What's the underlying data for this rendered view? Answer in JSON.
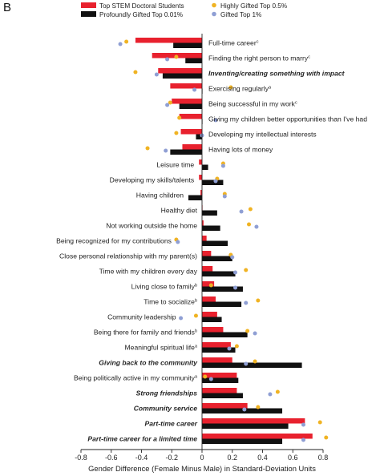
{
  "panel_label": "B",
  "chart_data": {
    "type": "bar",
    "orientation": "horizontal",
    "xlabel": "Gender Difference (Female Minus Male) in Standard-Deviation Units",
    "xlim": [
      -0.8,
      0.8
    ],
    "xticks": [
      -0.8,
      -0.6,
      -0.4,
      -0.2,
      0,
      0.2,
      0.4,
      0.6,
      0.8
    ],
    "tick_labels": [
      "-0.8",
      "-0.6",
      "-0.4",
      "-0.2",
      "0",
      "0.2",
      "0.4",
      "0.6",
      "0.8"
    ],
    "legend_position": "top",
    "colors": {
      "stem": "#e8212e",
      "profound": "#111111",
      "highly": "#f0b323",
      "gifted1": "#8f9fd4"
    },
    "legend": [
      {
        "key": "stem",
        "label": "Top STEM Doctoral Students",
        "mark": "bar"
      },
      {
        "key": "profound",
        "label": "Profoundly Gifted Top 0.01%",
        "mark": "bar"
      },
      {
        "key": "highly",
        "label": "Highly Gifted Top 0.5%",
        "mark": "dot"
      },
      {
        "key": "gifted1",
        "label": "Gifted Top 1%",
        "mark": "dot"
      }
    ],
    "categories": [
      {
        "label": "Full-time career",
        "sup": "c",
        "emph": false,
        "side": "right"
      },
      {
        "label": "Finding the right person to marry",
        "sup": "c",
        "emph": false,
        "side": "right"
      },
      {
        "label": "Inventing/creating something with impact",
        "sup": "",
        "emph": true,
        "side": "right"
      },
      {
        "label": "Exercising regularly",
        "sup": "a",
        "emph": false,
        "side": "right"
      },
      {
        "label": "Being successful in my work",
        "sup": "c",
        "emph": false,
        "side": "right"
      },
      {
        "label": "Giving my children better opportunities than I've had",
        "sup": "",
        "emph": false,
        "side": "right"
      },
      {
        "label": "Developing my intellectual interests",
        "sup": "",
        "emph": false,
        "side": "right"
      },
      {
        "label": "Having lots of money",
        "sup": "",
        "emph": false,
        "side": "right"
      },
      {
        "label": "Leisure time",
        "sup": "",
        "emph": false,
        "side": "left"
      },
      {
        "label": "Developing my skills/talents",
        "sup": "",
        "emph": false,
        "side": "left"
      },
      {
        "label": "Having children",
        "sup": "",
        "emph": false,
        "side": "left"
      },
      {
        "label": "Healthy diet",
        "sup": "",
        "emph": false,
        "side": "left"
      },
      {
        "label": "Not working outside the home",
        "sup": "",
        "emph": false,
        "side": "left"
      },
      {
        "label": "Being recognized for my contributions",
        "sup": "",
        "emph": false,
        "side": "left"
      },
      {
        "label": "Close personal relationship with my parent(s)",
        "sup": "",
        "emph": false,
        "side": "left"
      },
      {
        "label": "Time with my children every day",
        "sup": "",
        "emph": false,
        "side": "left"
      },
      {
        "label": "Living close to family",
        "sup": "b",
        "emph": false,
        "side": "left"
      },
      {
        "label": "Time to socialize",
        "sup": "b",
        "emph": false,
        "side": "left"
      },
      {
        "label": "Community leadership",
        "sup": "",
        "emph": false,
        "side": "left"
      },
      {
        "label": "Being there for family and friends",
        "sup": "b",
        "emph": false,
        "side": "left"
      },
      {
        "label": "Meaningful spiritual life",
        "sup": "a",
        "emph": false,
        "side": "left"
      },
      {
        "label": "Giving back to the community",
        "sup": "",
        "emph": true,
        "side": "left"
      },
      {
        "label": "Being politically active in my community",
        "sup": "a",
        "emph": false,
        "side": "left"
      },
      {
        "label": "Strong friendships",
        "sup": "",
        "emph": true,
        "side": "left"
      },
      {
        "label": "Community service",
        "sup": "",
        "emph": true,
        "side": "left"
      },
      {
        "label": "Part-time career",
        "sup": "",
        "emph": true,
        "side": "left"
      },
      {
        "label": "Part-time career for a limited time",
        "sup": "",
        "emph": true,
        "side": "left"
      }
    ],
    "series": [
      {
        "key": "stem",
        "name": "Top STEM Doctoral Students",
        "kind": "bar",
        "values": [
          -0.44,
          -0.33,
          -0.29,
          -0.21,
          -0.2,
          -0.15,
          -0.14,
          -0.13,
          -0.02,
          -0.02,
          -0.01,
          0.0,
          0.01,
          0.03,
          0.06,
          0.07,
          0.08,
          0.09,
          0.1,
          0.14,
          0.19,
          0.2,
          0.23,
          0.23,
          0.3,
          0.68,
          0.73
        ]
      },
      {
        "key": "profound",
        "name": "Profoundly Gifted Top 0.01%",
        "kind": "bar",
        "values": [
          -0.19,
          -0.11,
          -0.26,
          0.0,
          -0.15,
          0.0,
          -0.04,
          -0.21,
          0.04,
          0.14,
          -0.09,
          0.1,
          0.12,
          0.17,
          0.2,
          0.22,
          0.27,
          0.26,
          0.13,
          0.3,
          0.22,
          0.66,
          0.24,
          0.27,
          0.53,
          0.57,
          0.53
        ]
      },
      {
        "key": "highly",
        "name": "Highly Gifted Top 0.5%",
        "kind": "dot",
        "values": [
          -0.5,
          -0.17,
          -0.44,
          0.19,
          -0.21,
          -0.15,
          -0.17,
          -0.36,
          0.14,
          0.1,
          0.15,
          0.32,
          0.31,
          -0.17,
          0.19,
          0.29,
          0.06,
          0.37,
          -0.04,
          0.3,
          0.23,
          0.35,
          0.02,
          0.5,
          0.37,
          0.78,
          0.82
        ]
      },
      {
        "key": "gifted1",
        "name": "Gifted Top 1%",
        "kind": "dot",
        "values": [
          -0.54,
          -0.23,
          -0.3,
          -0.05,
          -0.23,
          0.09,
          0.0,
          -0.24,
          0.14,
          0.09,
          0.15,
          0.26,
          0.36,
          -0.16,
          0.2,
          0.22,
          0.22,
          0.29,
          -0.14,
          0.35,
          0.18,
          0.29,
          0.06,
          0.45,
          0.28,
          0.67,
          0.67
        ]
      }
    ]
  }
}
